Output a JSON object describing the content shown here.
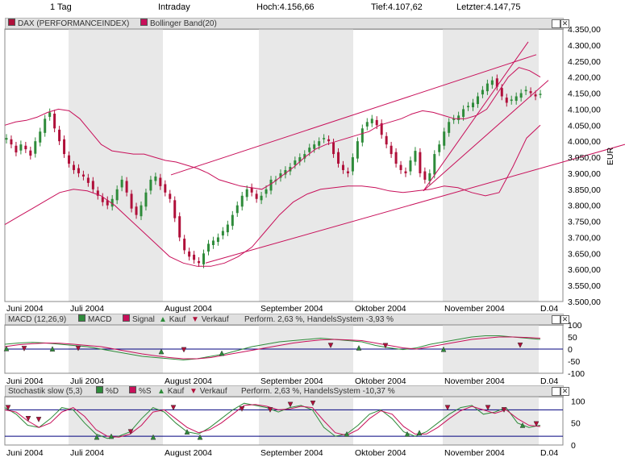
{
  "header": {
    "period": "1 Tag",
    "mode": "Intraday",
    "high": "Hoch:4.156,66",
    "low": "Tief:4.107,62",
    "last": "Letzter:4.147,75"
  },
  "main_panel": {
    "legend": [
      "DAX (PERFORMANCEINDEX)",
      "Bollinger Band(20)"
    ],
    "unit": "EUR"
  },
  "macd_panel": {
    "title": "MACD (12,26,9)",
    "legend": [
      "MACD",
      "Signal",
      "Kauf",
      "Verkauf"
    ],
    "perf": "Perform. 2,63 %, HandelsSystem -3,93 %"
  },
  "stoch_panel": {
    "title": "Stochastik slow (5,3)",
    "legend": [
      "%D",
      "%S",
      "Kauf",
      "Verkauf"
    ],
    "perf": "Perform. 2,63 %, HandelsSystem -10,37 %"
  },
  "colors": {
    "up": "#2e8b3a",
    "down": "#b0103a",
    "band": "#c8105a",
    "signal": "#c8105a",
    "macd": "#2e8b3a",
    "zero": "#00007f",
    "shade": "#e8e8e8"
  },
  "chart_data": [
    {
      "type": "candlestick",
      "series": [
        {
          "name": "DAX (PERFORMANCEINDEX)"
        },
        {
          "name": "Bollinger Band(20)"
        }
      ],
      "x_labels": [
        "Juni 2004",
        "Juli 2004",
        "August 2004",
        "September 2004",
        "Oktober 2004",
        "November 2004",
        "D.04"
      ],
      "ylim": [
        3500,
        4350
      ],
      "yticks": [
        "4.350,00",
        "4.300,00",
        "4.250,00",
        "4.200,00",
        "4.150,00",
        "4.100,00",
        "4.050,00",
        "4.000,00",
        "3.950,00",
        "3.900,00",
        "3.850,00",
        "3.800,00",
        "3.750,00",
        "3.700,00",
        "3.650,00",
        "3.600,00",
        "3.550,00",
        "3.500,00"
      ],
      "ytick_values": [
        4350,
        4300,
        4250,
        4200,
        4150,
        4100,
        4050,
        4000,
        3950,
        3900,
        3850,
        3800,
        3750,
        3700,
        3650,
        3600,
        3550,
        3500
      ],
      "close_approx": [
        4010,
        3990,
        3965,
        3990,
        3975,
        3955,
        4000,
        4030,
        4070,
        4090,
        4040,
        4000,
        3960,
        3930,
        3910,
        3900,
        3890,
        3870,
        3850,
        3830,
        3810,
        3800,
        3820,
        3850,
        3880,
        3840,
        3790,
        3770,
        3800,
        3840,
        3880,
        3890,
        3860,
        3840,
        3820,
        3760,
        3700,
        3660,
        3640,
        3630,
        3620,
        3650,
        3680,
        3690,
        3700,
        3720,
        3740,
        3770,
        3800,
        3830,
        3850,
        3840,
        3820,
        3830,
        3850,
        3880,
        3880,
        3900,
        3910,
        3920,
        3940,
        3950,
        3960,
        3980,
        3990,
        4000,
        4010,
        4000,
        3960,
        3930,
        3910,
        3900,
        3950,
        4000,
        4040,
        4060,
        4070,
        4050,
        4020,
        3990,
        3960,
        3930,
        3910,
        3900,
        3940,
        3970,
        3900,
        3880,
        3900,
        3960,
        3990,
        4030,
        4060,
        4070,
        4080,
        4100,
        4110,
        4120,
        4140,
        4160,
        4180,
        4190,
        4170,
        4140,
        4120,
        4130,
        4140,
        4150,
        4160,
        4150,
        4140,
        4148
      ],
      "bollinger_upper_approx": [
        4050,
        4060,
        4065,
        4075,
        4090,
        4100,
        4095,
        4070,
        4030,
        3990,
        3970,
        3965,
        3960,
        3960,
        3950,
        3940,
        3935,
        3925,
        3915,
        3900,
        3880,
        3870,
        3860,
        3855,
        3850,
        3870,
        3895,
        3920,
        3950,
        3975,
        3990,
        4000,
        4010,
        4020,
        4030,
        4050,
        4060,
        4070,
        4085,
        4095,
        4090,
        4080,
        4070,
        4070,
        4080,
        4100,
        4150,
        4200,
        4230,
        4220,
        4200
      ],
      "bollinger_lower_approx": [
        3740,
        3765,
        3790,
        3815,
        3840,
        3850,
        3845,
        3830,
        3800,
        3760,
        3720,
        3680,
        3640,
        3620,
        3610,
        3610,
        3620,
        3640,
        3670,
        3720,
        3770,
        3810,
        3835,
        3850,
        3855,
        3860,
        3860,
        3855,
        3845,
        3840,
        3845,
        3850,
        3860,
        3855,
        3840,
        3830,
        3840,
        3920,
        4010,
        4050
      ]
    },
    {
      "type": "line",
      "title": "MACD (12,26,9)",
      "series": [
        {
          "name": "MACD"
        },
        {
          "name": "Signal"
        }
      ],
      "ylim": [
        -100,
        100
      ],
      "yticks": [
        "100",
        "50",
        "0",
        "-50",
        "-100"
      ],
      "ytick_values": [
        100,
        50,
        0,
        -50,
        -100
      ],
      "macd_approx": [
        20,
        25,
        28,
        25,
        20,
        15,
        10,
        0,
        -10,
        -20,
        -30,
        -35,
        -40,
        -45,
        -40,
        -30,
        -20,
        -5,
        10,
        20,
        30,
        35,
        40,
        45,
        40,
        35,
        30,
        15,
        5,
        -2,
        5,
        20,
        30,
        40,
        50,
        55,
        55,
        50,
        45,
        40
      ],
      "signal_approx": [
        10,
        18,
        22,
        25,
        24,
        20,
        15,
        10,
        0,
        -10,
        -20,
        -28,
        -35,
        -40,
        -40,
        -35,
        -25,
        -15,
        -5,
        5,
        15,
        25,
        32,
        38,
        40,
        38,
        35,
        25,
        15,
        5,
        0,
        10,
        20,
        30,
        40,
        45,
        50,
        50,
        48,
        45
      ]
    },
    {
      "type": "line",
      "title": "Stochastik slow (5,3)",
      "series": [
        {
          "name": "%D"
        },
        {
          "name": "%S"
        }
      ],
      "ylim": [
        0,
        110
      ],
      "yticks": [
        "100",
        "50",
        "0"
      ],
      "ytick_values": [
        100,
        50,
        0
      ],
      "hlines": [
        80,
        20
      ],
      "d_approx": [
        85,
        70,
        45,
        40,
        60,
        85,
        80,
        50,
        25,
        15,
        20,
        30,
        60,
        85,
        75,
        50,
        30,
        25,
        40,
        60,
        80,
        95,
        90,
        85,
        75,
        85,
        90,
        80,
        40,
        20,
        25,
        45,
        70,
        80,
        60,
        30,
        20,
        30,
        50,
        70,
        85,
        90,
        70,
        75,
        85,
        50,
        40,
        45
      ],
      "s_approx": [
        80,
        75,
        55,
        40,
        50,
        75,
        85,
        65,
        35,
        20,
        18,
        25,
        45,
        75,
        80,
        60,
        40,
        28,
        35,
        50,
        70,
        90,
        92,
        88,
        80,
        82,
        88,
        85,
        55,
        28,
        22,
        35,
        60,
        78,
        70,
        42,
        25,
        25,
        40,
        60,
        78,
        88,
        80,
        72,
        80,
        60,
        45,
        42
      ]
    }
  ]
}
